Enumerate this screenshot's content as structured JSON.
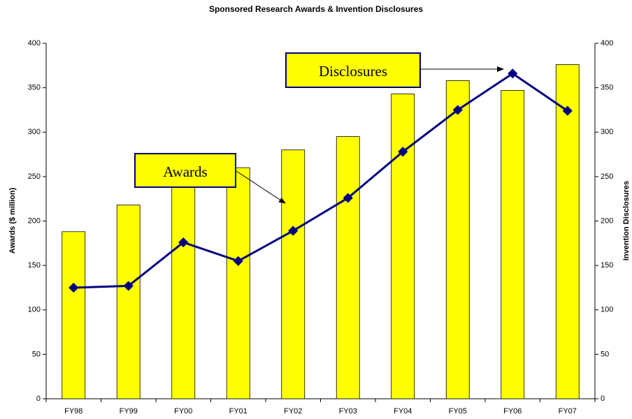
{
  "chart_data": {
    "type": "bar-line",
    "title": "Sponsored Research Awards & Invention Disclosures",
    "categories": [
      "FY98",
      "FY99",
      "FY00",
      "FY01",
      "FY02",
      "FY03",
      "FY04",
      "FY05",
      "FY06",
      "FY07"
    ],
    "series": [
      {
        "name": "Awards",
        "type": "bar",
        "color": "#ffff00",
        "values": [
          188,
          218,
          255,
          260,
          280,
          295,
          343,
          358,
          347,
          376
        ]
      },
      {
        "name": "Disclosures",
        "type": "line",
        "axis": "y2",
        "color": "#000080",
        "values": [
          125,
          127,
          176,
          155,
          189,
          226,
          278,
          325,
          366,
          324
        ]
      }
    ],
    "ylabel": "Awards ($ million)",
    "y2label": "Invention Disclosures",
    "ylim": [
      0,
      400
    ],
    "yticks": [
      0,
      50,
      100,
      150,
      200,
      250,
      300,
      350,
      400
    ],
    "y2lim": [
      0,
      400
    ],
    "y2ticks": [
      0,
      50,
      100,
      150,
      200,
      250,
      300,
      350,
      400
    ],
    "annotations": [
      {
        "text": "Disclosures"
      },
      {
        "text": "Awards"
      }
    ]
  }
}
